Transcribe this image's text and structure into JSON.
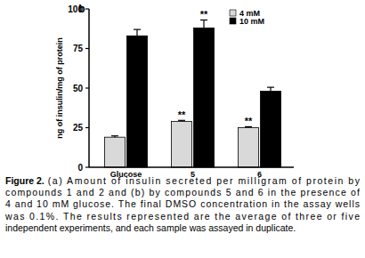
{
  "chart_data": {
    "type": "bar",
    "title": "b",
    "y_label": "ng of insulin/mg of protein",
    "categories": [
      "Glucose",
      "5",
      "6"
    ],
    "series": [
      {
        "name": "4 mM",
        "color": "#d9d9d9",
        "values": [
          19,
          29,
          25
        ],
        "errors": [
          0.8,
          0.6,
          0.6
        ],
        "annotations": [
          null,
          "**",
          "**"
        ]
      },
      {
        "name": "10 mM",
        "color": "#000000",
        "values": [
          83,
          88,
          48
        ],
        "errors": [
          4,
          5,
          2.5
        ],
        "annotations": [
          null,
          "**",
          null
        ]
      }
    ],
    "ylim": [
      0,
      100
    ],
    "yticks": [
      0,
      25,
      50,
      75,
      100
    ],
    "grid": false,
    "legend": "top-right",
    "caption": {
      "label": "Figure 2.",
      "lines": [
        "(a) Amount of insulin secreted per milligram of protein by",
        "compounds 1 and 2 and (b) by compounds 5 and 6 in the presence of",
        "4 and 10 mM glucose. The final DMSO concentration in the assay wells",
        "was 0.1%. The results represented are the average of three or five",
        "independent experiments, and each sample was assayed in duplicate."
      ]
    }
  }
}
